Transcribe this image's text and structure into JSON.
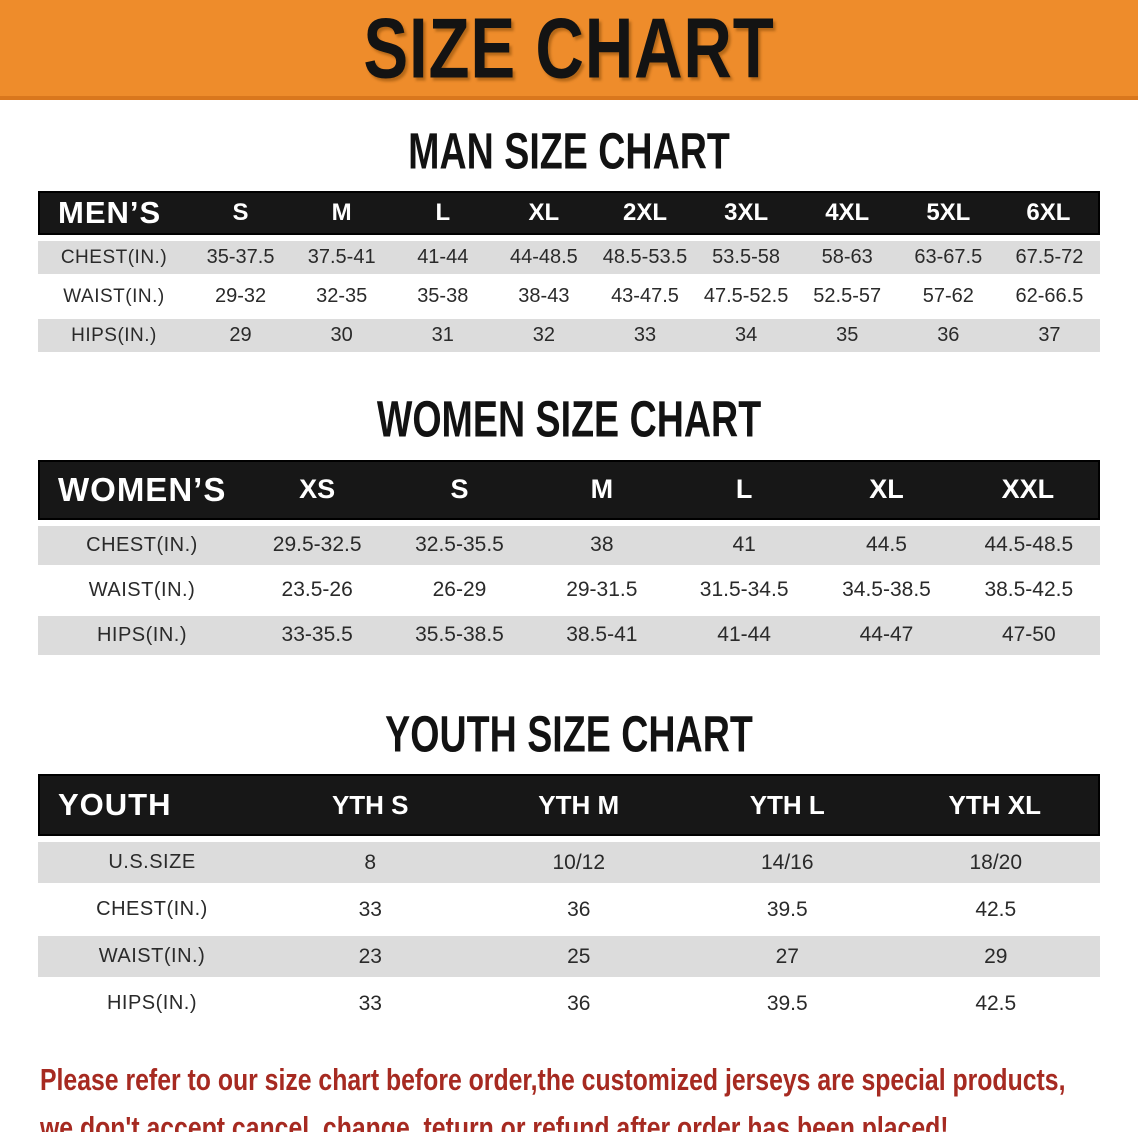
{
  "banner": {
    "title": "SIZE CHART",
    "bg_color": "#EE8C2B"
  },
  "sections": {
    "men": {
      "heading": "MAN SIZE CHART",
      "group_label": "MEN’S",
      "columns": [
        "S",
        "M",
        "L",
        "XL",
        "2XL",
        "3XL",
        "4XL",
        "5XL",
        "6XL"
      ],
      "rows": [
        {
          "label": "CHEST(IN.)",
          "values": [
            "35-37.5",
            "37.5-41",
            "41-44",
            "44-48.5",
            "48.5-53.5",
            "53.5-58",
            "58-63",
            "63-67.5",
            "67.5-72"
          ]
        },
        {
          "label": "WAIST(IN.)",
          "values": [
            "29-32",
            "32-35",
            "35-38",
            "38-43",
            "43-47.5",
            "47.5-52.5",
            "52.5-57",
            "57-62",
            "62-66.5"
          ]
        },
        {
          "label": "HIPS(IN.)",
          "values": [
            "29",
            "30",
            "31",
            "32",
            "33",
            "34",
            "35",
            "36",
            "37"
          ]
        }
      ]
    },
    "women": {
      "heading": "WOMEN SIZE CHART",
      "group_label": "WOMEN’S",
      "columns": [
        "XS",
        "S",
        "M",
        "L",
        "XL",
        "XXL"
      ],
      "rows": [
        {
          "label": "CHEST(IN.)",
          "values": [
            "29.5-32.5",
            "32.5-35.5",
            "38",
            "41",
            "44.5",
            "44.5-48.5"
          ]
        },
        {
          "label": "WAIST(IN.)",
          "values": [
            "23.5-26",
            "26-29",
            "29-31.5",
            "31.5-34.5",
            "34.5-38.5",
            "38.5-42.5"
          ]
        },
        {
          "label": "HIPS(IN.)",
          "values": [
            "33-35.5",
            "35.5-38.5",
            "38.5-41",
            "41-44",
            "44-47",
            "47-50"
          ]
        }
      ]
    },
    "youth": {
      "heading": "YOUTH SIZE CHART",
      "group_label": "YOUTH",
      "columns": [
        "YTH S",
        "YTH M",
        "YTH L",
        "YTH XL"
      ],
      "rows": [
        {
          "label": "U.S.SIZE",
          "values": [
            "8",
            "10/12",
            "14/16",
            "18/20"
          ]
        },
        {
          "label": "CHEST(IN.)",
          "values": [
            "33",
            "36",
            "39.5",
            "42.5"
          ]
        },
        {
          "label": "WAIST(IN.)",
          "values": [
            "23",
            "25",
            "27",
            "29"
          ]
        },
        {
          "label": "HIPS(IN.)",
          "values": [
            "33",
            "36",
            "39.5",
            "42.5"
          ]
        }
      ]
    }
  },
  "footer": {
    "line1": "Please refer to our size chart before order,the customized jerseys are special products,",
    "line2": "we don't accept cancel, change, teturn or refund after order has been placed!",
    "text_color": "#A62A21"
  },
  "colors": {
    "banner_orange": "#EE8C2B",
    "header_black": "#171717",
    "row_shade_gray": "#DCDCDC",
    "footer_red": "#A62A21"
  }
}
